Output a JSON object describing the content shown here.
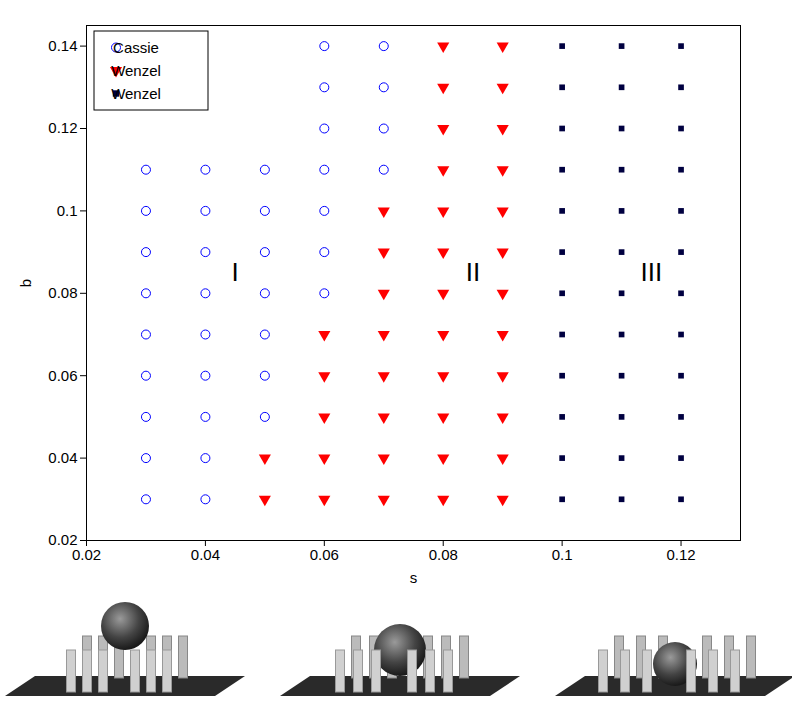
{
  "chart_data": {
    "type": "scatter",
    "x_label": "s",
    "y_label": "b",
    "xlim": [
      0.02,
      0.13
    ],
    "ylim": [
      0.02,
      0.145
    ],
    "xticks": [
      0.02,
      0.04,
      0.06,
      0.08,
      0.1,
      0.12
    ],
    "yticks": [
      0.02,
      0.04,
      0.06,
      0.08,
      0.1,
      0.12,
      0.14
    ],
    "grid": false,
    "legend": "top-left",
    "series": [
      {
        "name": "Cassie",
        "color": "#0000ff",
        "marker": "circle",
        "x": [
          0.03,
          0.03,
          0.03,
          0.03,
          0.03,
          0.03,
          0.03,
          0.03,
          0.03,
          0.04,
          0.04,
          0.04,
          0.04,
          0.04,
          0.04,
          0.04,
          0.04,
          0.04,
          0.05,
          0.05,
          0.05,
          0.05,
          0.05,
          0.05,
          0.05,
          0.06,
          0.06,
          0.06,
          0.06,
          0.06,
          0.06,
          0.06,
          0.07,
          0.07,
          0.07,
          0.07
        ],
        "y": [
          0.03,
          0.04,
          0.05,
          0.06,
          0.07,
          0.08,
          0.09,
          0.1,
          0.11,
          0.03,
          0.04,
          0.05,
          0.06,
          0.07,
          0.08,
          0.09,
          0.1,
          0.11,
          0.05,
          0.06,
          0.07,
          0.08,
          0.09,
          0.1,
          0.11,
          0.08,
          0.09,
          0.1,
          0.11,
          0.12,
          0.13,
          0.14,
          0.11,
          0.12,
          0.13,
          0.14
        ]
      },
      {
        "name": "Wenzel",
        "color": "#ff0000",
        "marker": "triangle-down",
        "x": [
          0.05,
          0.05,
          0.06,
          0.06,
          0.06,
          0.06,
          0.06,
          0.07,
          0.07,
          0.07,
          0.07,
          0.07,
          0.07,
          0.07,
          0.07,
          0.08,
          0.08,
          0.08,
          0.08,
          0.08,
          0.08,
          0.08,
          0.08,
          0.08,
          0.08,
          0.08,
          0.08,
          0.09,
          0.09,
          0.09,
          0.09,
          0.09,
          0.09,
          0.09,
          0.09,
          0.09,
          0.09,
          0.09,
          0.09
        ],
        "y": [
          0.03,
          0.04,
          0.03,
          0.04,
          0.05,
          0.06,
          0.07,
          0.03,
          0.04,
          0.05,
          0.06,
          0.07,
          0.08,
          0.09,
          0.1,
          0.03,
          0.04,
          0.05,
          0.06,
          0.07,
          0.08,
          0.09,
          0.1,
          0.11,
          0.12,
          0.13,
          0.14,
          0.03,
          0.04,
          0.05,
          0.06,
          0.07,
          0.08,
          0.09,
          0.1,
          0.11,
          0.12,
          0.13,
          0.14
        ]
      },
      {
        "name": "Wenzel",
        "color": "#000040",
        "marker": "square",
        "x": [
          0.1,
          0.1,
          0.1,
          0.1,
          0.1,
          0.1,
          0.1,
          0.1,
          0.1,
          0.1,
          0.1,
          0.1,
          0.11,
          0.11,
          0.11,
          0.11,
          0.11,
          0.11,
          0.11,
          0.11,
          0.11,
          0.11,
          0.11,
          0.11,
          0.12,
          0.12,
          0.12,
          0.12,
          0.12,
          0.12,
          0.12,
          0.12,
          0.12,
          0.12,
          0.12,
          0.12
        ],
        "y": [
          0.03,
          0.04,
          0.05,
          0.06,
          0.07,
          0.08,
          0.09,
          0.1,
          0.11,
          0.12,
          0.13,
          0.14,
          0.03,
          0.04,
          0.05,
          0.06,
          0.07,
          0.08,
          0.09,
          0.1,
          0.11,
          0.12,
          0.13,
          0.14,
          0.03,
          0.04,
          0.05,
          0.06,
          0.07,
          0.08,
          0.09,
          0.1,
          0.11,
          0.12,
          0.13,
          0.14
        ]
      }
    ],
    "annotations": [
      {
        "text": "I",
        "x": 0.045,
        "y": 0.085
      },
      {
        "text": "II",
        "x": 0.085,
        "y": 0.085
      },
      {
        "text": "III",
        "x": 0.115,
        "y": 0.085
      }
    ]
  }
}
